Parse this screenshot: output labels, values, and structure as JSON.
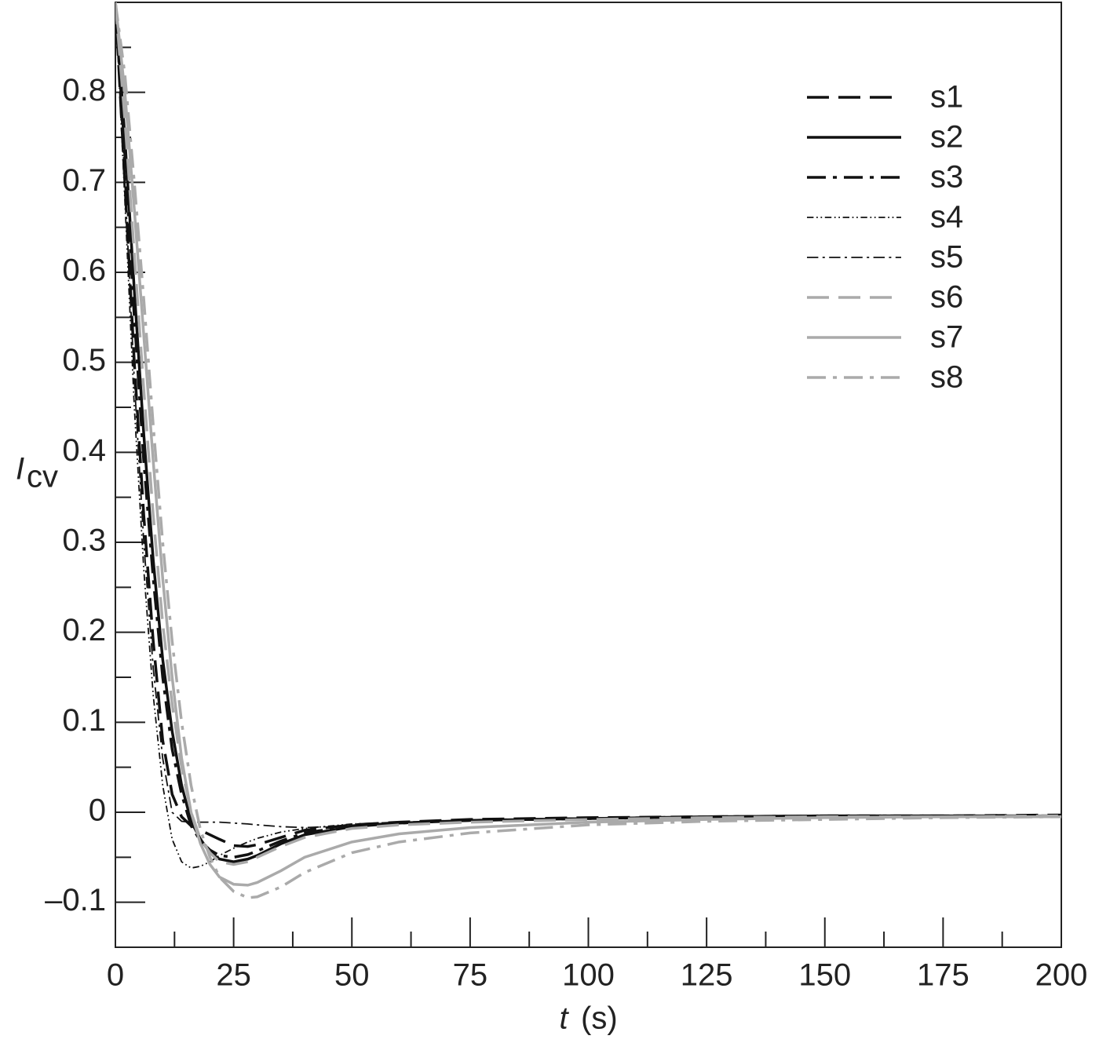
{
  "chart_data": {
    "type": "line",
    "ylabel": "I",
    "ylabel_subscript": "cv",
    "xlabel_variable": "t",
    "xlabel_unit": "(s)",
    "x": [
      0,
      2,
      4,
      6,
      8,
      10,
      12,
      14,
      16,
      18,
      20,
      22,
      25,
      28,
      30,
      35,
      40,
      50,
      60,
      75,
      100,
      125,
      150,
      175,
      200
    ],
    "series": [
      {
        "name": "s1",
        "color": "#111111",
        "dash": "dashed",
        "width": 3.5,
        "values": [
          0.9,
          0.7,
          0.5,
          0.33,
          0.19,
          0.08,
          0.02,
          -0.005,
          -0.015,
          -0.02,
          -0.025,
          -0.03,
          -0.037,
          -0.038,
          -0.036,
          -0.028,
          -0.02,
          -0.014,
          -0.011,
          -0.008,
          -0.006,
          -0.005,
          -0.004,
          -0.004,
          -0.003
        ]
      },
      {
        "name": "s2",
        "color": "#111111",
        "dash": "solid",
        "width": 3.5,
        "values": [
          0.9,
          0.75,
          0.58,
          0.42,
          0.28,
          0.17,
          0.09,
          0.03,
          -0.01,
          -0.03,
          -0.045,
          -0.052,
          -0.055,
          -0.052,
          -0.048,
          -0.035,
          -0.025,
          -0.016,
          -0.012,
          -0.009,
          -0.007,
          -0.005,
          -0.004,
          -0.004,
          -0.004
        ]
      },
      {
        "name": "s3",
        "color": "#111111",
        "dash": "dashdot",
        "width": 3.5,
        "values": [
          0.9,
          0.73,
          0.55,
          0.39,
          0.26,
          0.15,
          0.07,
          0.02,
          -0.015,
          -0.032,
          -0.042,
          -0.048,
          -0.05,
          -0.047,
          -0.043,
          -0.032,
          -0.023,
          -0.015,
          -0.012,
          -0.009,
          -0.007,
          -0.005,
          -0.004,
          -0.004,
          -0.004
        ]
      },
      {
        "name": "s4",
        "color": "#111111",
        "dash": "dashdotdot",
        "width": 1.8,
        "values": [
          0.9,
          0.68,
          0.45,
          0.27,
          0.13,
          0.03,
          -0.03,
          -0.055,
          -0.062,
          -0.06,
          -0.055,
          -0.048,
          -0.04,
          -0.033,
          -0.029,
          -0.022,
          -0.018,
          -0.013,
          -0.011,
          -0.009,
          -0.007,
          -0.006,
          -0.005,
          -0.005,
          -0.004
        ]
      },
      {
        "name": "s5",
        "color": "#111111",
        "dash": "dashdot",
        "width": 1.8,
        "values": [
          0.9,
          0.7,
          0.48,
          0.3,
          0.16,
          0.06,
          0.0,
          -0.01,
          -0.011,
          -0.011,
          -0.011,
          -0.011,
          -0.012,
          -0.013,
          -0.014,
          -0.016,
          -0.017,
          -0.015,
          -0.012,
          -0.009,
          -0.007,
          -0.006,
          -0.005,
          -0.005,
          -0.004
        ]
      },
      {
        "name": "s6",
        "color": "#aaaaaa",
        "dash": "dashed",
        "width": 3.5,
        "values": [
          0.9,
          0.77,
          0.62,
          0.47,
          0.33,
          0.21,
          0.12,
          0.05,
          0.0,
          -0.03,
          -0.045,
          -0.055,
          -0.058,
          -0.055,
          -0.05,
          -0.038,
          -0.028,
          -0.018,
          -0.014,
          -0.011,
          -0.008,
          -0.006,
          -0.005,
          -0.005,
          -0.004
        ]
      },
      {
        "name": "s7",
        "color": "#aaaaaa",
        "dash": "solid",
        "width": 3.5,
        "values": [
          0.9,
          0.8,
          0.67,
          0.53,
          0.39,
          0.26,
          0.15,
          0.06,
          0.0,
          -0.035,
          -0.058,
          -0.072,
          -0.08,
          -0.081,
          -0.078,
          -0.065,
          -0.05,
          -0.033,
          -0.024,
          -0.017,
          -0.011,
          -0.008,
          -0.006,
          -0.005,
          -0.005
        ]
      },
      {
        "name": "s8",
        "color": "#aaaaaa",
        "dash": "dashdot",
        "width": 3.5,
        "values": [
          0.9,
          0.82,
          0.7,
          0.57,
          0.43,
          0.3,
          0.19,
          0.1,
          0.03,
          -0.02,
          -0.05,
          -0.072,
          -0.088,
          -0.095,
          -0.094,
          -0.083,
          -0.067,
          -0.045,
          -0.033,
          -0.023,
          -0.014,
          -0.01,
          -0.008,
          -0.006,
          -0.005
        ]
      }
    ],
    "xlim": [
      0,
      200
    ],
    "ylim": [
      -0.15,
      0.9
    ],
    "xticks": [
      0,
      25,
      50,
      75,
      100,
      125,
      150,
      175,
      200
    ],
    "xminorticks": [
      12.5,
      37.5,
      62.5,
      87.5,
      112.5,
      137.5,
      162.5,
      187.5
    ],
    "yticks": [
      {
        "value": -0.1,
        "label": "–0.1"
      },
      0,
      0.1,
      0.2,
      0.3,
      0.4,
      0.5,
      0.6,
      0.7,
      0.8
    ],
    "yminorticks": [
      -0.05,
      0.05,
      0.15,
      0.25,
      0.35,
      0.45,
      0.55,
      0.65,
      0.75,
      0.85
    ],
    "legend": "top-right",
    "grid": false
  }
}
